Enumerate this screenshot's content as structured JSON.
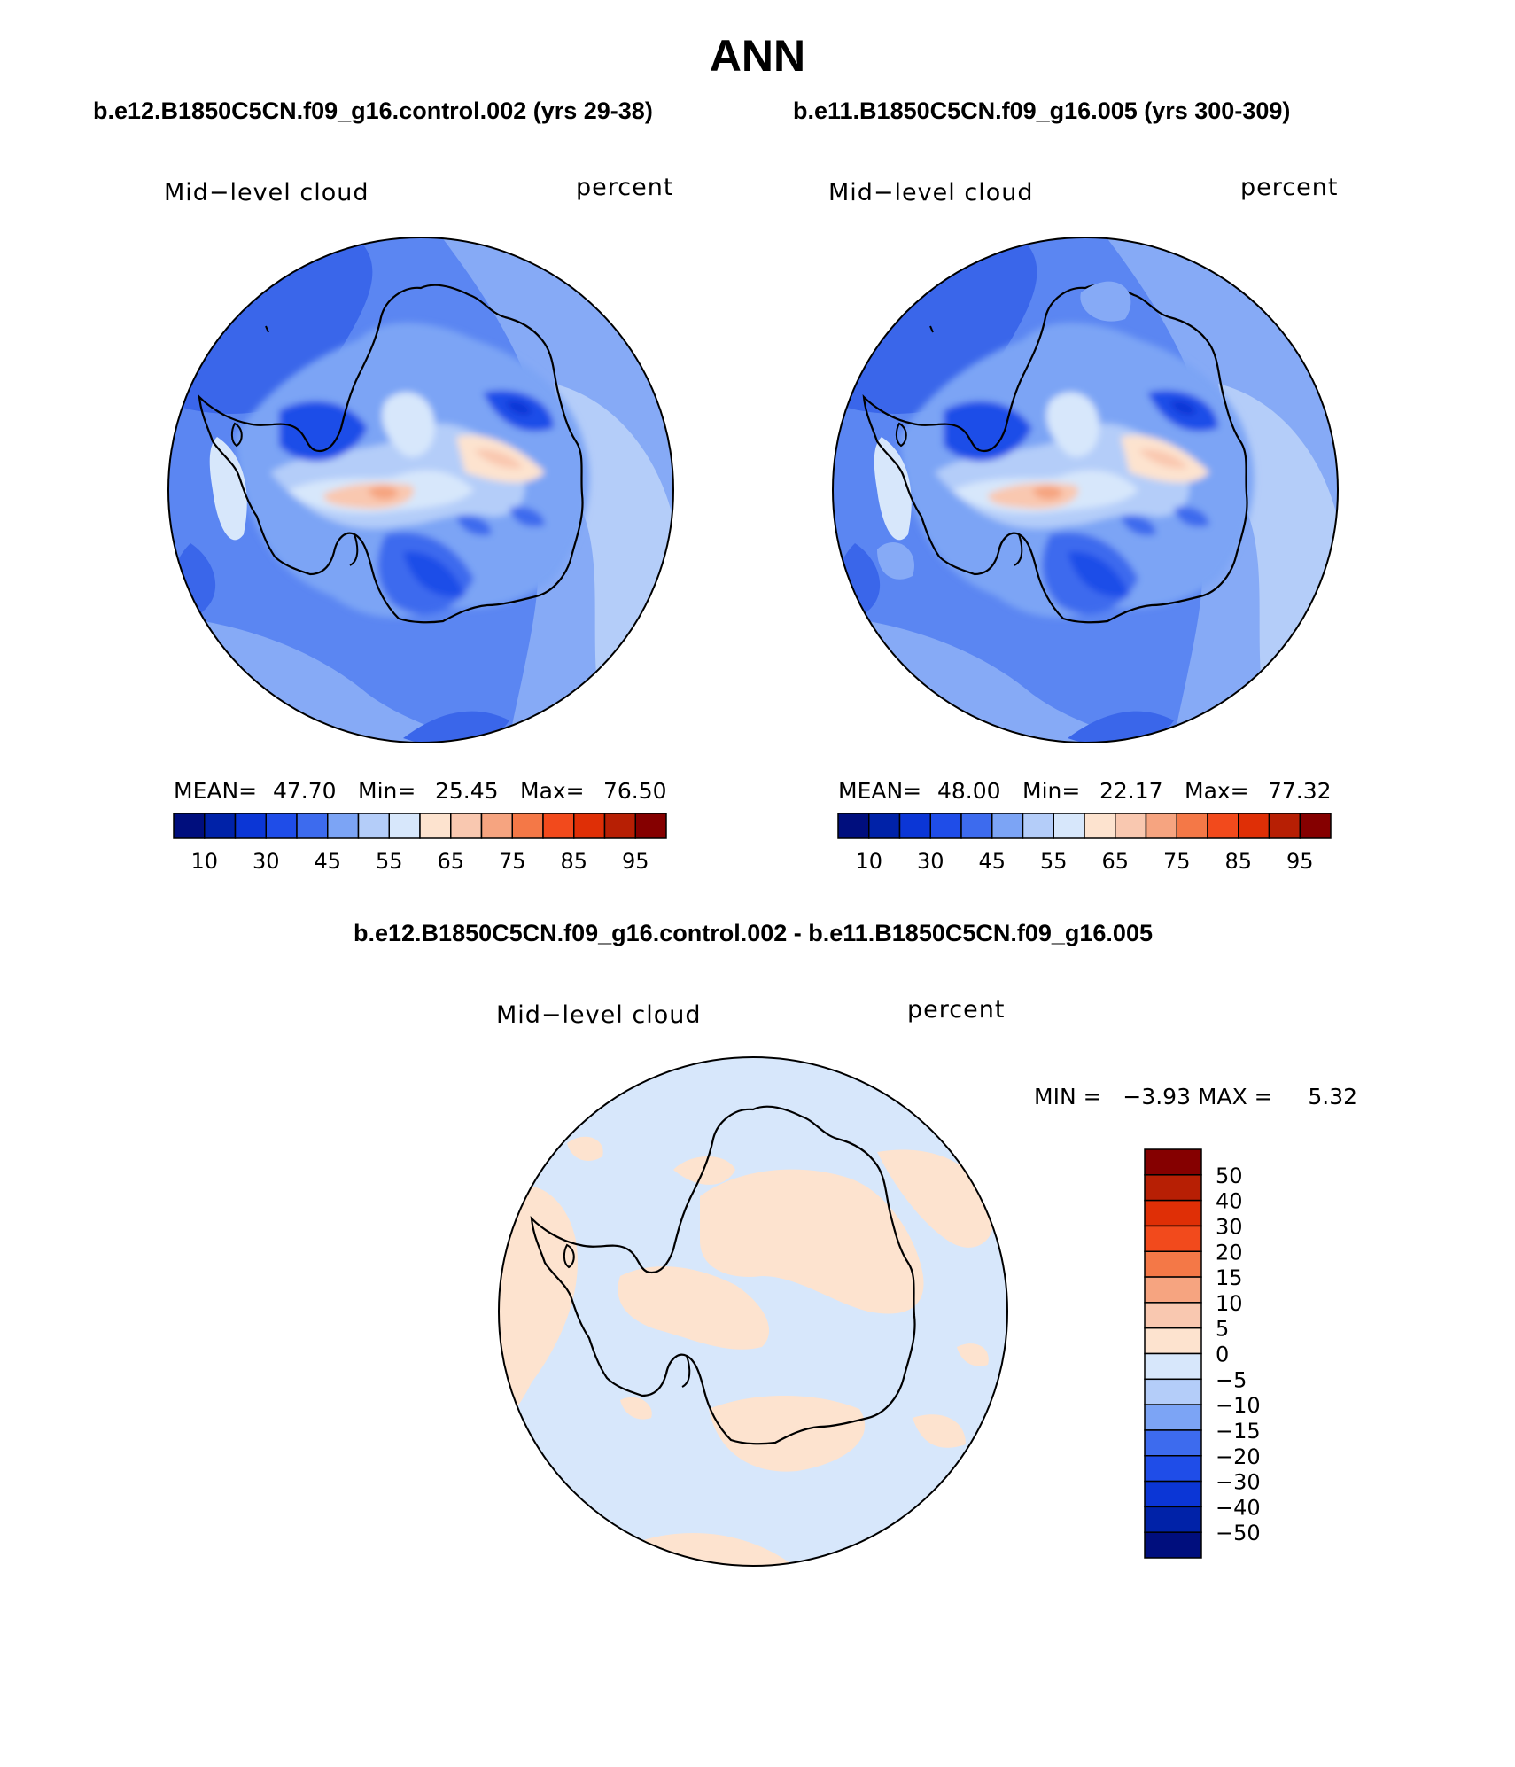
{
  "figure": {
    "title": "ANN",
    "colors": {
      "blues": [
        "#000e7d",
        "#0022a8",
        "#0b36d6",
        "#1f4de8",
        "#3d6bee",
        "#7ca4f5",
        "#b4cdf9",
        "#d7e7fb"
      ],
      "reds": [
        "#fde3cf",
        "#f9c8b0",
        "#f6a480",
        "#f47847",
        "#f24a1c",
        "#df2f06",
        "#b71f04",
        "#850000"
      ],
      "ocean_main": "#5b86f2",
      "ocean_light": "#86aaf6",
      "ocean_dark": "#3a66ea",
      "coast": "#000000"
    }
  },
  "panels": [
    {
      "case": "b.e12.B1850C5CN.f09_g16.control.002 (yrs 29-38)",
      "left_label": "Mid−level cloud",
      "right_label": "percent",
      "stats": {
        "mean_label": "MEAN=",
        "mean": "47.70",
        "min_label": "Min=",
        "min": "25.45",
        "max_label": "Max=",
        "max": "76.50"
      }
    },
    {
      "case": "b.e11.B1850C5CN.f09_g16.005 (yrs 300-309)",
      "left_label": "Mid−level cloud",
      "right_label": "percent",
      "stats": {
        "mean_label": "MEAN=",
        "mean": "48.00",
        "min_label": "Min=",
        "min": "22.17",
        "max_label": "Max=",
        "max": "77.32"
      }
    }
  ],
  "colorbar_h": {
    "labels": [
      "10",
      "30",
      "45",
      "55",
      "65",
      "75",
      "85",
      "95"
    ]
  },
  "diff": {
    "title": "b.e12.B1850C5CN.f09_g16.control.002 - b.e11.B1850C5CN.f09_g16.005",
    "left_label": "Mid−level cloud",
    "right_label": "percent",
    "minmax_label": "MIN =   −3.93 MAX =     5.32",
    "colorbar_v": {
      "labels": [
        "50",
        "40",
        "30",
        "20",
        "15",
        "10",
        "5",
        "0",
        "−5",
        "−10",
        "−15",
        "−20",
        "−30",
        "−40",
        "−50"
      ],
      "colors": [
        "#850000",
        "#b71f04",
        "#df2f06",
        "#f24a1c",
        "#f47847",
        "#f6a480",
        "#f9c8b0",
        "#fde3cf",
        "#d7e7fb",
        "#b4cdf9",
        "#7ca4f5",
        "#3d6bee",
        "#1f4de8",
        "#0b36d6",
        "#0022a8",
        "#000e7d"
      ]
    },
    "field_colors": {
      "base": "#d7e7fb",
      "positive": "#fde3cf"
    }
  }
}
